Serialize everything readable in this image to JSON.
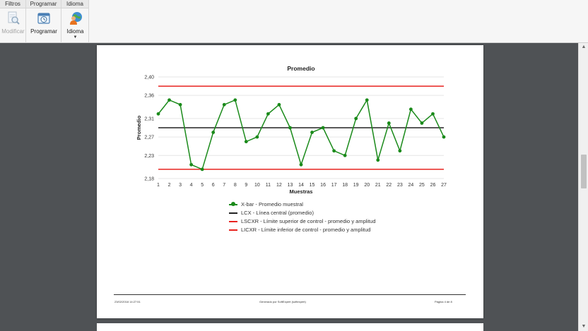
{
  "ribbon": {
    "groups": [
      {
        "title": "Filtros",
        "buttons": [
          {
            "label": "Modificar",
            "icon": "magnifier-document-icon",
            "disabled": true
          }
        ]
      },
      {
        "title": "Programar",
        "buttons": [
          {
            "label": "Programar",
            "icon": "calendar-clock-icon"
          }
        ]
      },
      {
        "title": "Idioma",
        "buttons": [
          {
            "label": "Idioma",
            "icon": "globe-user-icon"
          }
        ]
      }
    ]
  },
  "colors": {
    "series": "#1a8a1a",
    "center_line": "#222222",
    "limit_line": "#e8231f",
    "grid": "#e6e6e6"
  },
  "chart_data": {
    "type": "line",
    "title": "Promedio",
    "xlabel": "Muestras",
    "ylabel": "Promedio",
    "ylim": [
      2.18,
      2.4
    ],
    "yticks": [
      "2,40",
      "2,36",
      "2,31",
      "2,27",
      "2,23",
      "2,18"
    ],
    "ytick_values": [
      2.4,
      2.36,
      2.31,
      2.27,
      2.23,
      2.18
    ],
    "x": [
      1,
      2,
      3,
      4,
      5,
      6,
      7,
      8,
      9,
      10,
      11,
      12,
      13,
      14,
      15,
      16,
      17,
      18,
      19,
      20,
      21,
      22,
      23,
      24,
      25,
      26,
      27
    ],
    "series": [
      {
        "name": "X-bar - Promedio muestral",
        "values": [
          2.32,
          2.35,
          2.34,
          2.21,
          2.2,
          2.28,
          2.34,
          2.35,
          2.26,
          2.27,
          2.32,
          2.34,
          2.29,
          2.21,
          2.28,
          2.29,
          2.24,
          2.23,
          2.31,
          2.35,
          2.22,
          2.3,
          2.24,
          2.33,
          2.3,
          2.32,
          2.27
        ]
      }
    ],
    "reference_lines": [
      {
        "name": "LCX - Línea central (promedio)",
        "value": 2.29
      },
      {
        "name": "LSCXR - Límite superior de control - promedio y amplitud",
        "value": 2.38
      },
      {
        "name": "LICXR - Límite inferior de control - promedio y amplitud",
        "value": 2.2
      }
    ],
    "grid": true,
    "legend": "bottom"
  },
  "legend": [
    {
      "label": "X-bar - Promedio muestral",
      "kind": "series"
    },
    {
      "label": "LCX - Línea central (promedio)",
      "kind": "center"
    },
    {
      "label": "LSCXR - Límite superior de control - promedio y amplitud",
      "kind": "limit"
    },
    {
      "label": "LICXR - Límite inferior de control - promedio y amplitud",
      "kind": "limit"
    }
  ],
  "footer": {
    "left": "23/02/2018 14:27:51",
    "center": "Generado por SoftExpert (softexpert)",
    "right": "Página 4 de 8"
  }
}
